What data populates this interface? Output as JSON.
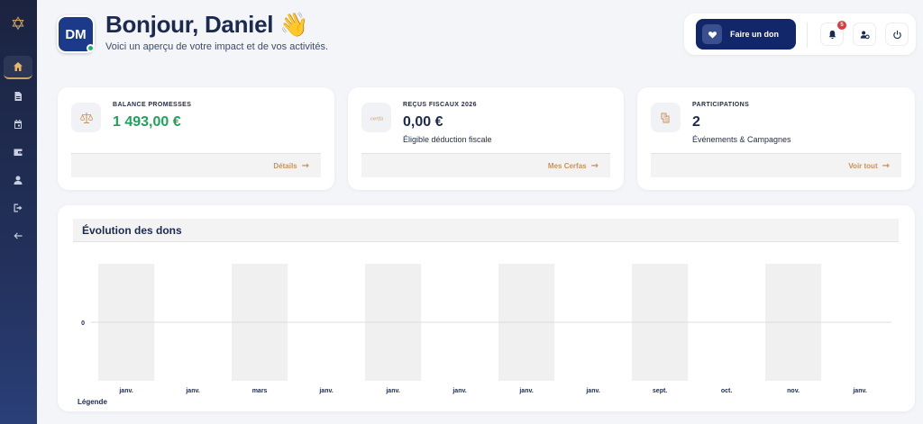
{
  "sidebar": {
    "logo": "✡",
    "items": [
      {
        "icon": "home-icon",
        "active": true
      },
      {
        "icon": "document-icon",
        "active": false
      },
      {
        "icon": "calendar-icon",
        "active": false
      },
      {
        "icon": "wallet-icon",
        "active": false
      },
      {
        "icon": "user-icon",
        "active": false
      },
      {
        "icon": "logout-icon",
        "active": false
      },
      {
        "icon": "arrow-left-icon",
        "active": false
      }
    ]
  },
  "header": {
    "avatar_initials": "DM",
    "greeting": "Bonjour, Daniel 👋",
    "subtitle": "Voici un aperçu de votre impact et de vos activités."
  },
  "actions": {
    "donate_label": "Faire un don",
    "notification_count": "5"
  },
  "cards": [
    {
      "label": "BALANCE PROMESSES",
      "value": "1 493,00 €",
      "description": "",
      "link": "Détails",
      "value_color": "#1fa35a"
    },
    {
      "label": "REÇUS FISCAUX 2026",
      "value": "0,00 €",
      "description": "Éligible déduction fiscale",
      "link": "Mes Cerfas"
    },
    {
      "label": "PARTICIPATIONS",
      "value": "2",
      "description": "Événements & Campagnes",
      "link": "Voir tout"
    }
  ],
  "chart": {
    "title": "Évolution des dons",
    "legend_label": "Légende"
  },
  "chart_data": {
    "type": "bar",
    "categories": [
      "janv.",
      "janv.",
      "mars",
      "janv.",
      "janv.",
      "janv.",
      "janv.",
      "janv.",
      "sept.",
      "oct.",
      "nov.",
      "janv."
    ],
    "values": [
      0,
      0,
      0,
      0,
      0,
      0,
      0,
      0,
      0,
      0,
      0,
      0
    ],
    "y_ticks": [
      "0"
    ],
    "title": "Évolution des dons",
    "grid": true
  },
  "colors": {
    "accent": "#c9925a",
    "brand": "#12266a",
    "success": "#1fa35a"
  }
}
